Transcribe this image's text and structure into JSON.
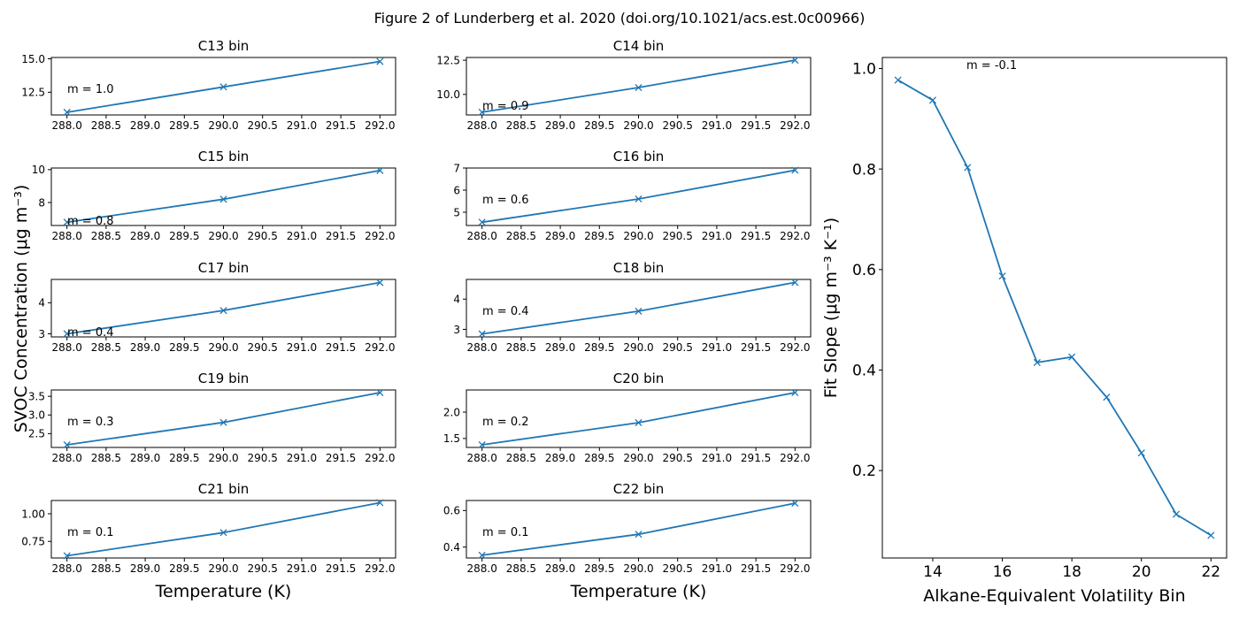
{
  "figure_title": "Figure 2 of Lunderberg et al. 2020 (doi.org/10.1021/acs.est.0c00966)",
  "colors": {
    "series": "#1f77b4",
    "axis": "#000000",
    "background": "#ffffff"
  },
  "left_ylabel": "SVOC Concentration (μg m⁻³)",
  "chart_data": [
    {
      "type": "line",
      "title": "C13 bin",
      "xlabel": "",
      "x": [
        288,
        290,
        292
      ],
      "y": [
        11.0,
        12.9,
        14.8
      ],
      "annotation": "m = 1.0",
      "xlim": [
        287.8,
        292.2
      ],
      "ylim": [
        10.8,
        15.1
      ],
      "yticks": [
        12.5,
        15.0
      ],
      "ytick_labels": [
        "12.5",
        "15.0"
      ],
      "xticks": [
        288,
        288.5,
        289,
        289.5,
        290,
        290.5,
        291,
        291.5,
        292
      ],
      "xtick_labels": [
        "288.0",
        "288.5",
        "289.0",
        "289.5",
        "290.0",
        "290.5",
        "291.0",
        "291.5",
        "292.0"
      ],
      "marker": "x"
    },
    {
      "type": "line",
      "title": "C14 bin",
      "xlabel": "",
      "x": [
        288,
        290,
        292
      ],
      "y": [
        8.7,
        10.5,
        12.5
      ],
      "annotation": "m = 0.9",
      "xlim": [
        287.8,
        292.2
      ],
      "ylim": [
        8.5,
        12.7
      ],
      "yticks": [
        10.0,
        12.5
      ],
      "ytick_labels": [
        "10.0",
        "12.5"
      ],
      "xticks": [
        288,
        288.5,
        289,
        289.5,
        290,
        290.5,
        291,
        291.5,
        292
      ],
      "xtick_labels": [
        "288.0",
        "288.5",
        "289.0",
        "289.5",
        "290.0",
        "290.5",
        "291.0",
        "291.5",
        "292.0"
      ],
      "marker": "x"
    },
    {
      "type": "line",
      "title": "C15 bin",
      "xlabel": "",
      "x": [
        288,
        290,
        292
      ],
      "y": [
        6.8,
        8.2,
        9.95
      ],
      "annotation": "m = 0.8",
      "xlim": [
        287.8,
        292.2
      ],
      "ylim": [
        6.6,
        10.1
      ],
      "yticks": [
        8,
        10
      ],
      "ytick_labels": [
        "8",
        "10"
      ],
      "xticks": [
        288,
        288.5,
        289,
        289.5,
        290,
        290.5,
        291,
        291.5,
        292
      ],
      "xtick_labels": [
        "288.0",
        "288.5",
        "289.0",
        "289.5",
        "290.0",
        "290.5",
        "291.0",
        "291.5",
        "292.0"
      ],
      "marker": "x"
    },
    {
      "type": "line",
      "title": "C16 bin",
      "xlabel": "",
      "x": [
        288,
        290,
        292
      ],
      "y": [
        4.55,
        5.6,
        6.9
      ],
      "annotation": "m = 0.6",
      "xlim": [
        287.8,
        292.2
      ],
      "ylim": [
        4.4,
        7.0
      ],
      "yticks": [
        5,
        6,
        7
      ],
      "ytick_labels": [
        "5",
        "6",
        "7"
      ],
      "xticks": [
        288,
        288.5,
        289,
        289.5,
        290,
        290.5,
        291,
        291.5,
        292
      ],
      "xtick_labels": [
        "288.0",
        "288.5",
        "289.0",
        "289.5",
        "290.0",
        "290.5",
        "291.0",
        "291.5",
        "292.0"
      ],
      "marker": "x"
    },
    {
      "type": "line",
      "title": "C17 bin",
      "xlabel": "",
      "x": [
        288,
        290,
        292
      ],
      "y": [
        3.0,
        3.75,
        4.65
      ],
      "annotation": "m = 0.4",
      "xlim": [
        287.8,
        292.2
      ],
      "ylim": [
        2.9,
        4.75
      ],
      "yticks": [
        3,
        4
      ],
      "ytick_labels": [
        "3",
        "4"
      ],
      "xticks": [
        288,
        288.5,
        289,
        289.5,
        290,
        290.5,
        291,
        291.5,
        292
      ],
      "xtick_labels": [
        "288.0",
        "288.5",
        "289.0",
        "289.5",
        "290.0",
        "290.5",
        "291.0",
        "291.5",
        "292.0"
      ],
      "marker": "x"
    },
    {
      "type": "line",
      "title": "C18 bin",
      "xlabel": "",
      "x": [
        288,
        290,
        292
      ],
      "y": [
        2.85,
        3.6,
        4.55
      ],
      "annotation": "m = 0.4",
      "xlim": [
        287.8,
        292.2
      ],
      "ylim": [
        2.75,
        4.65
      ],
      "yticks": [
        3,
        4
      ],
      "ytick_labels": [
        "3",
        "4"
      ],
      "xticks": [
        288,
        288.5,
        289,
        289.5,
        290,
        290.5,
        291,
        291.5,
        292
      ],
      "xtick_labels": [
        "288.0",
        "288.5",
        "289.0",
        "289.5",
        "290.0",
        "290.5",
        "291.0",
        "291.5",
        "292.0"
      ],
      "marker": "x"
    },
    {
      "type": "line",
      "title": "C19 bin",
      "xlabel": "",
      "x": [
        288,
        290,
        292
      ],
      "y": [
        2.2,
        2.8,
        3.6
      ],
      "annotation": "m = 0.3",
      "xlim": [
        287.8,
        292.2
      ],
      "ylim": [
        2.13,
        3.67
      ],
      "yticks": [
        2.5,
        3.0,
        3.5
      ],
      "ytick_labels": [
        "2.5",
        "3.0",
        "3.5"
      ],
      "xticks": [
        288,
        288.5,
        289,
        289.5,
        290,
        290.5,
        291,
        291.5,
        292
      ],
      "xtick_labels": [
        "288.0",
        "288.5",
        "289.0",
        "289.5",
        "290.0",
        "290.5",
        "291.0",
        "291.5",
        "292.0"
      ],
      "marker": "x"
    },
    {
      "type": "line",
      "title": "C20 bin",
      "xlabel": "",
      "x": [
        288,
        290,
        292
      ],
      "y": [
        1.38,
        1.8,
        2.37
      ],
      "annotation": "m = 0.2",
      "xlim": [
        287.8,
        292.2
      ],
      "ylim": [
        1.33,
        2.42
      ],
      "yticks": [
        1.5,
        2.0
      ],
      "ytick_labels": [
        "1.5",
        "2.0"
      ],
      "xticks": [
        288,
        288.5,
        289,
        289.5,
        290,
        290.5,
        291,
        291.5,
        292
      ],
      "xtick_labels": [
        "288.0",
        "288.5",
        "289.0",
        "289.5",
        "290.0",
        "290.5",
        "291.0",
        "291.5",
        "292.0"
      ],
      "marker": "x"
    },
    {
      "type": "line",
      "title": "C21 bin",
      "xlabel": "Temperature (K)",
      "x": [
        288,
        290,
        292
      ],
      "y": [
        0.62,
        0.83,
        1.1
      ],
      "annotation": "m = 0.1",
      "xlim": [
        287.8,
        292.2
      ],
      "ylim": [
        0.6,
        1.12
      ],
      "yticks": [
        0.75,
        1.0
      ],
      "ytick_labels": [
        "0.75",
        "1.00"
      ],
      "xticks": [
        288,
        288.5,
        289,
        289.5,
        290,
        290.5,
        291,
        291.5,
        292
      ],
      "xtick_labels": [
        "288.0",
        "288.5",
        "289.0",
        "289.5",
        "290.0",
        "290.5",
        "291.0",
        "291.5",
        "292.0"
      ],
      "marker": "x"
    },
    {
      "type": "line",
      "title": "C22 bin",
      "xlabel": "Temperature (K)",
      "x": [
        288,
        290,
        292
      ],
      "y": [
        0.355,
        0.47,
        0.64
      ],
      "annotation": "m = 0.1",
      "xlim": [
        287.8,
        292.2
      ],
      "ylim": [
        0.34,
        0.655
      ],
      "yticks": [
        0.4,
        0.6
      ],
      "ytick_labels": [
        "0.4",
        "0.6"
      ],
      "xticks": [
        288,
        288.5,
        289,
        289.5,
        290,
        290.5,
        291,
        291.5,
        292
      ],
      "xtick_labels": [
        "288.0",
        "288.5",
        "289.0",
        "289.5",
        "290.0",
        "290.5",
        "291.0",
        "291.5",
        "292.0"
      ],
      "marker": "x"
    },
    {
      "type": "line",
      "title": "",
      "xlabel": "Alkane-Equivalent Volatility Bin",
      "ylabel": "Fit Slope (μg m⁻³ K⁻¹)",
      "x": [
        13,
        14,
        15,
        16,
        17,
        18,
        19,
        20,
        21,
        22
      ],
      "y": [
        0.977,
        0.937,
        0.803,
        0.587,
        0.415,
        0.426,
        0.346,
        0.235,
        0.113,
        0.071
      ],
      "annotation": "m = -0.1",
      "xlim": [
        12.55,
        22.45
      ],
      "ylim": [
        0.026,
        1.022
      ],
      "yticks": [
        0.2,
        0.4,
        0.6,
        0.8,
        1.0
      ],
      "ytick_labels": [
        "0.2",
        "0.4",
        "0.6",
        "0.8",
        "1.0"
      ],
      "xticks": [
        14,
        16,
        18,
        20,
        22
      ],
      "xtick_labels": [
        "14",
        "16",
        "18",
        "20",
        "22"
      ],
      "marker": "x"
    }
  ]
}
